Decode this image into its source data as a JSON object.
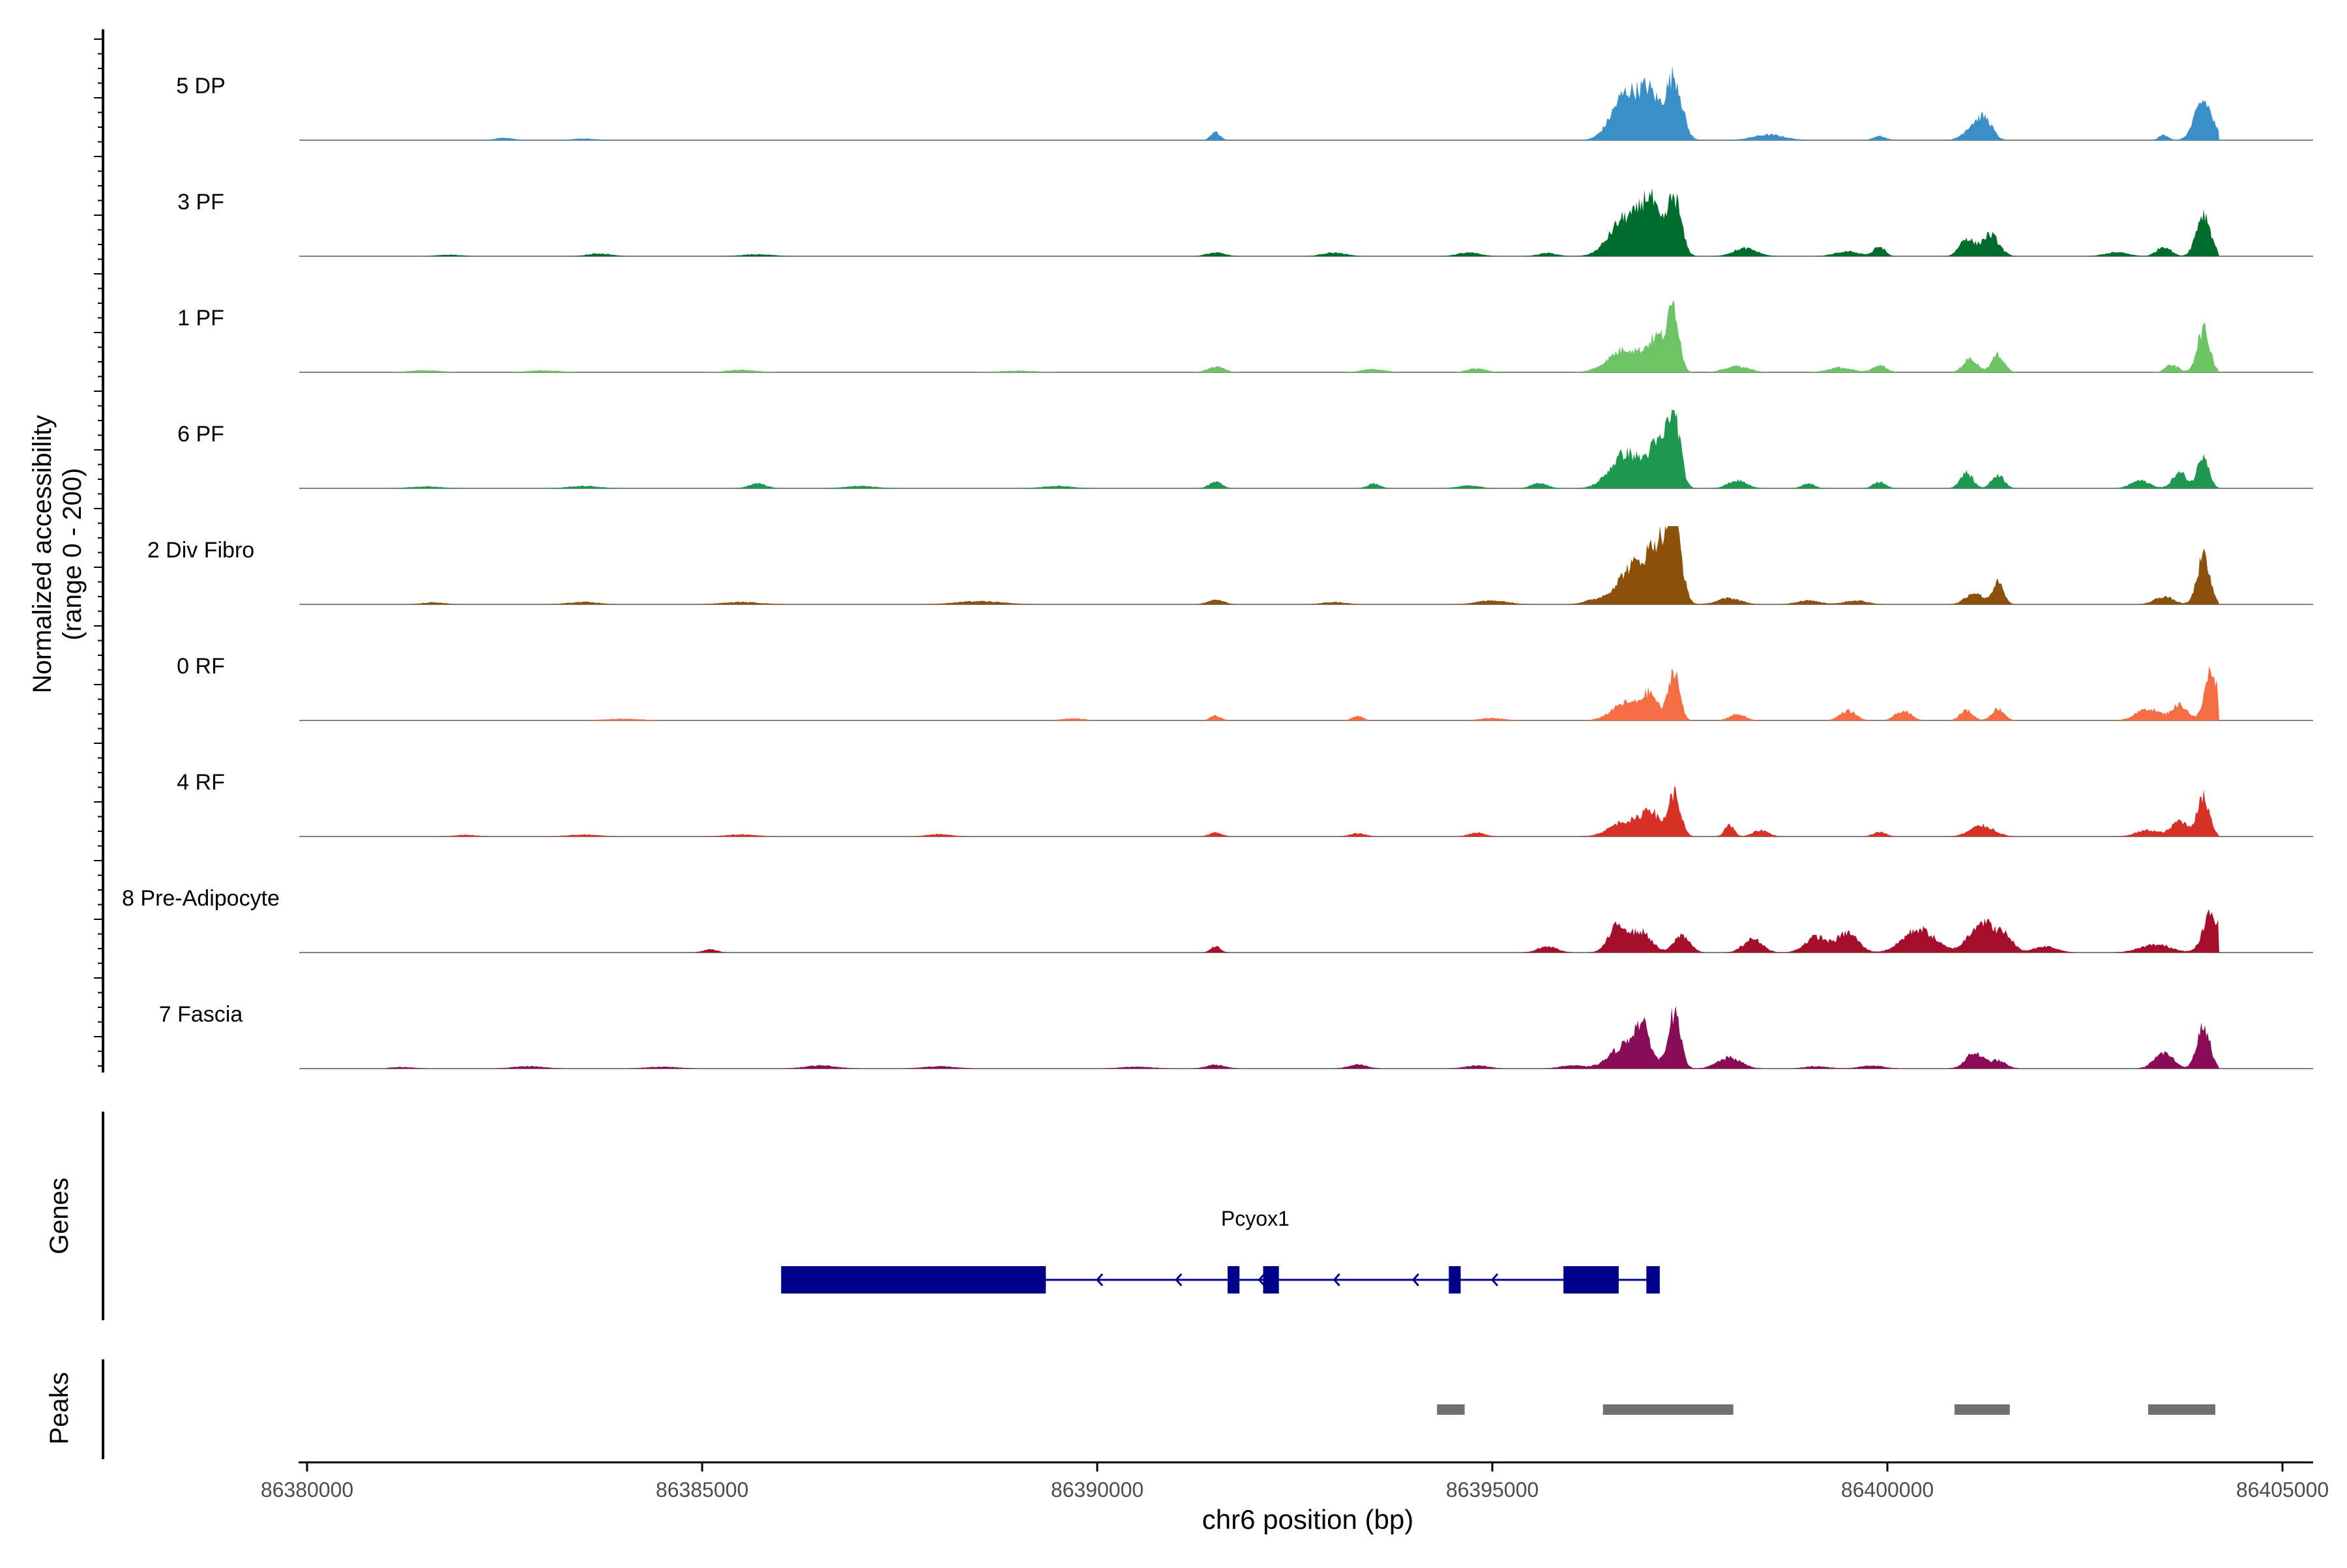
{
  "chart_data": {
    "type": "area",
    "title": "",
    "ylabel_line1": "Normalized accessibility",
    "ylabel_line2": "(range 0 - 200)",
    "xlabel": "chr6 position (bp)",
    "xlim": [
      86380000,
      86405000
    ],
    "ylim": [
      0,
      200
    ],
    "x_ticks": [
      86380000,
      86385000,
      86390000,
      86395000,
      86400000,
      86405000
    ],
    "x_tick_labels": [
      "86380000",
      "86385000",
      "86390000",
      "86395000",
      "86400000",
      "86405000"
    ],
    "tracks_axis_label": "Genes",
    "peaks_axis_label": "Peaks",
    "series": [
      {
        "name": "5 DP",
        "color": "#3a8fc8",
        "peaks": [
          [
            86382500,
            6,
            120
          ],
          [
            86383500,
            4,
            150
          ],
          [
            86391500,
            20,
            60
          ],
          [
            86396700,
            120,
            180
          ],
          [
            86397000,
            100,
            120
          ],
          [
            86397300,
            160,
            100
          ],
          [
            86398500,
            14,
            200
          ],
          [
            86399900,
            10,
            80
          ],
          [
            86401100,
            38,
            120
          ],
          [
            86401250,
            40,
            90
          ],
          [
            86403500,
            14,
            60
          ],
          [
            86404000,
            100,
            110
          ]
        ]
      },
      {
        "name": "3 PF",
        "color": "#006d2c",
        "peaks": [
          [
            86381800,
            4,
            150
          ],
          [
            86383700,
            7,
            150
          ],
          [
            86385700,
            5,
            200
          ],
          [
            86391500,
            9,
            120
          ],
          [
            86393000,
            9,
            150
          ],
          [
            86394700,
            9,
            150
          ],
          [
            86395700,
            8,
            120
          ],
          [
            86396700,
            100,
            200
          ],
          [
            86397000,
            120,
            110
          ],
          [
            86397300,
            150,
            90
          ],
          [
            86398200,
            20,
            150
          ],
          [
            86399500,
            12,
            160
          ],
          [
            86399900,
            24,
            70
          ],
          [
            86401000,
            45,
            90
          ],
          [
            86401300,
            55,
            110
          ],
          [
            86402900,
            10,
            150
          ],
          [
            86403500,
            25,
            90
          ],
          [
            86404000,
            110,
            90
          ]
        ]
      },
      {
        "name": "1 PF",
        "color": "#6cc464",
        "peaks": [
          [
            86381500,
            5,
            200
          ],
          [
            86383000,
            5,
            200
          ],
          [
            86385500,
            6,
            200
          ],
          [
            86389000,
            4,
            250
          ],
          [
            86391500,
            14,
            110
          ],
          [
            86393500,
            8,
            150
          ],
          [
            86394800,
            10,
            120
          ],
          [
            86396700,
            60,
            220
          ],
          [
            86397100,
            80,
            120
          ],
          [
            86397300,
            150,
            70
          ],
          [
            86398100,
            16,
            150
          ],
          [
            86399400,
            12,
            150
          ],
          [
            86399900,
            18,
            90
          ],
          [
            86401050,
            35,
            90
          ],
          [
            86401400,
            45,
            80
          ],
          [
            86403600,
            20,
            80
          ],
          [
            86404000,
            110,
            80
          ]
        ]
      },
      {
        "name": "6 PF",
        "color": "#1e9850",
        "peaks": [
          [
            86381500,
            5,
            200
          ],
          [
            86383500,
            6,
            200
          ],
          [
            86385700,
            12,
            110
          ],
          [
            86387000,
            6,
            200
          ],
          [
            86389500,
            6,
            200
          ],
          [
            86391500,
            18,
            80
          ],
          [
            86393500,
            12,
            80
          ],
          [
            86394700,
            7,
            150
          ],
          [
            86395600,
            14,
            100
          ],
          [
            86396700,
            90,
            200
          ],
          [
            86397100,
            100,
            120
          ],
          [
            86397300,
            180,
            80
          ],
          [
            86398100,
            20,
            120
          ],
          [
            86399000,
            12,
            80
          ],
          [
            86399900,
            16,
            80
          ],
          [
            86401000,
            40,
            80
          ],
          [
            86401400,
            35,
            80
          ],
          [
            86403200,
            20,
            120
          ],
          [
            86403700,
            40,
            90
          ],
          [
            86404000,
            90,
            70
          ]
        ]
      },
      {
        "name": "2 Div Fibro",
        "color": "#8c510a",
        "peaks": [
          [
            86381600,
            5,
            150
          ],
          [
            86383500,
            6,
            200
          ],
          [
            86385500,
            6,
            250
          ],
          [
            86388500,
            8,
            300
          ],
          [
            86391500,
            12,
            100
          ],
          [
            86393000,
            6,
            150
          ],
          [
            86395000,
            10,
            200
          ],
          [
            86396300,
            10,
            150
          ],
          [
            86396800,
            100,
            200
          ],
          [
            86397100,
            120,
            120
          ],
          [
            86397300,
            210,
            90
          ],
          [
            86398000,
            16,
            150
          ],
          [
            86399000,
            10,
            150
          ],
          [
            86399600,
            10,
            150
          ],
          [
            86401100,
            30,
            110
          ],
          [
            86401400,
            55,
            70
          ],
          [
            86403500,
            20,
            120
          ],
          [
            86404000,
            120,
            80
          ]
        ]
      },
      {
        "name": "0 RF",
        "color": "#f46d43",
        "peaks": [
          [
            86384000,
            4,
            250
          ],
          [
            86389700,
            5,
            150
          ],
          [
            86391500,
            12,
            70
          ],
          [
            86393300,
            12,
            70
          ],
          [
            86395000,
            6,
            150
          ],
          [
            86396700,
            45,
            180
          ],
          [
            86397000,
            60,
            100
          ],
          [
            86397300,
            130,
            70
          ],
          [
            86398100,
            16,
            100
          ],
          [
            86399500,
            25,
            100
          ],
          [
            86400200,
            24,
            100
          ],
          [
            86401000,
            26,
            80
          ],
          [
            86401400,
            30,
            80
          ],
          [
            86403300,
            30,
            150
          ],
          [
            86403700,
            40,
            100
          ],
          [
            86404100,
            130,
            80
          ]
        ]
      },
      {
        "name": "4 RF",
        "color": "#d73027",
        "peaks": [
          [
            86382000,
            4,
            150
          ],
          [
            86383500,
            5,
            200
          ],
          [
            86385500,
            5,
            200
          ],
          [
            86388000,
            6,
            150
          ],
          [
            86391500,
            10,
            80
          ],
          [
            86393300,
            8,
            100
          ],
          [
            86394800,
            10,
            100
          ],
          [
            86396700,
            40,
            200
          ],
          [
            86397000,
            60,
            100
          ],
          [
            86397300,
            110,
            80
          ],
          [
            86398000,
            30,
            60
          ],
          [
            86398400,
            16,
            100
          ],
          [
            86399900,
            12,
            80
          ],
          [
            86401200,
            28,
            150
          ],
          [
            86403300,
            16,
            150
          ],
          [
            86403700,
            40,
            100
          ],
          [
            86404000,
            100,
            80
          ]
        ]
      },
      {
        "name": "8 Pre-Adipocyte",
        "color": "#a50f2c",
        "peaks": [
          [
            86385100,
            8,
            90
          ],
          [
            86391500,
            16,
            60
          ],
          [
            86395700,
            16,
            120
          ],
          [
            86396600,
            70,
            120
          ],
          [
            86396900,
            50,
            120
          ],
          [
            86397400,
            45,
            100
          ],
          [
            86398300,
            35,
            120
          ],
          [
            86399100,
            40,
            140
          ],
          [
            86399500,
            50,
            130
          ],
          [
            86400400,
            60,
            200
          ],
          [
            86401200,
            80,
            160
          ],
          [
            86401500,
            35,
            100
          ],
          [
            86402000,
            16,
            150
          ],
          [
            86403400,
            20,
            200
          ],
          [
            86404100,
            100,
            100
          ]
        ]
      },
      {
        "name": "7 Fascia",
        "color": "#8a0b56",
        "peaks": [
          [
            86381200,
            4,
            150
          ],
          [
            86382800,
            6,
            200
          ],
          [
            86384500,
            5,
            200
          ],
          [
            86386500,
            8,
            200
          ],
          [
            86388000,
            6,
            200
          ],
          [
            86390500,
            5,
            200
          ],
          [
            86391500,
            10,
            120
          ],
          [
            86393300,
            10,
            120
          ],
          [
            86394800,
            8,
            150
          ],
          [
            86396000,
            8,
            150
          ],
          [
            86396700,
            60,
            200
          ],
          [
            86396900,
            80,
            100
          ],
          [
            86397300,
            140,
            80
          ],
          [
            86398000,
            28,
            150
          ],
          [
            86399100,
            6,
            150
          ],
          [
            86399800,
            8,
            150
          ],
          [
            86401100,
            40,
            110
          ],
          [
            86401400,
            20,
            100
          ],
          [
            86403500,
            40,
            120
          ],
          [
            86404000,
            110,
            80
          ]
        ]
      }
    ],
    "gene": {
      "name": "Pcyox1",
      "start": 86386000,
      "end": 86397100,
      "exons": [
        [
          86386000,
          86389350
        ],
        [
          86391650,
          86391800
        ],
        [
          86392100,
          86392300
        ],
        [
          86394450,
          86394600
        ],
        [
          86395900,
          86396600
        ],
        [
          86396950,
          86397120
        ]
      ],
      "arrows": [
        86390000,
        86391000,
        86392050,
        86393000,
        86394000,
        86395000
      ]
    },
    "peaks_regions": [
      [
        86394300,
        86394650
      ],
      [
        86396400,
        86398050
      ],
      [
        86400850,
        86401550
      ],
      [
        86403300,
        86404150
      ]
    ]
  }
}
